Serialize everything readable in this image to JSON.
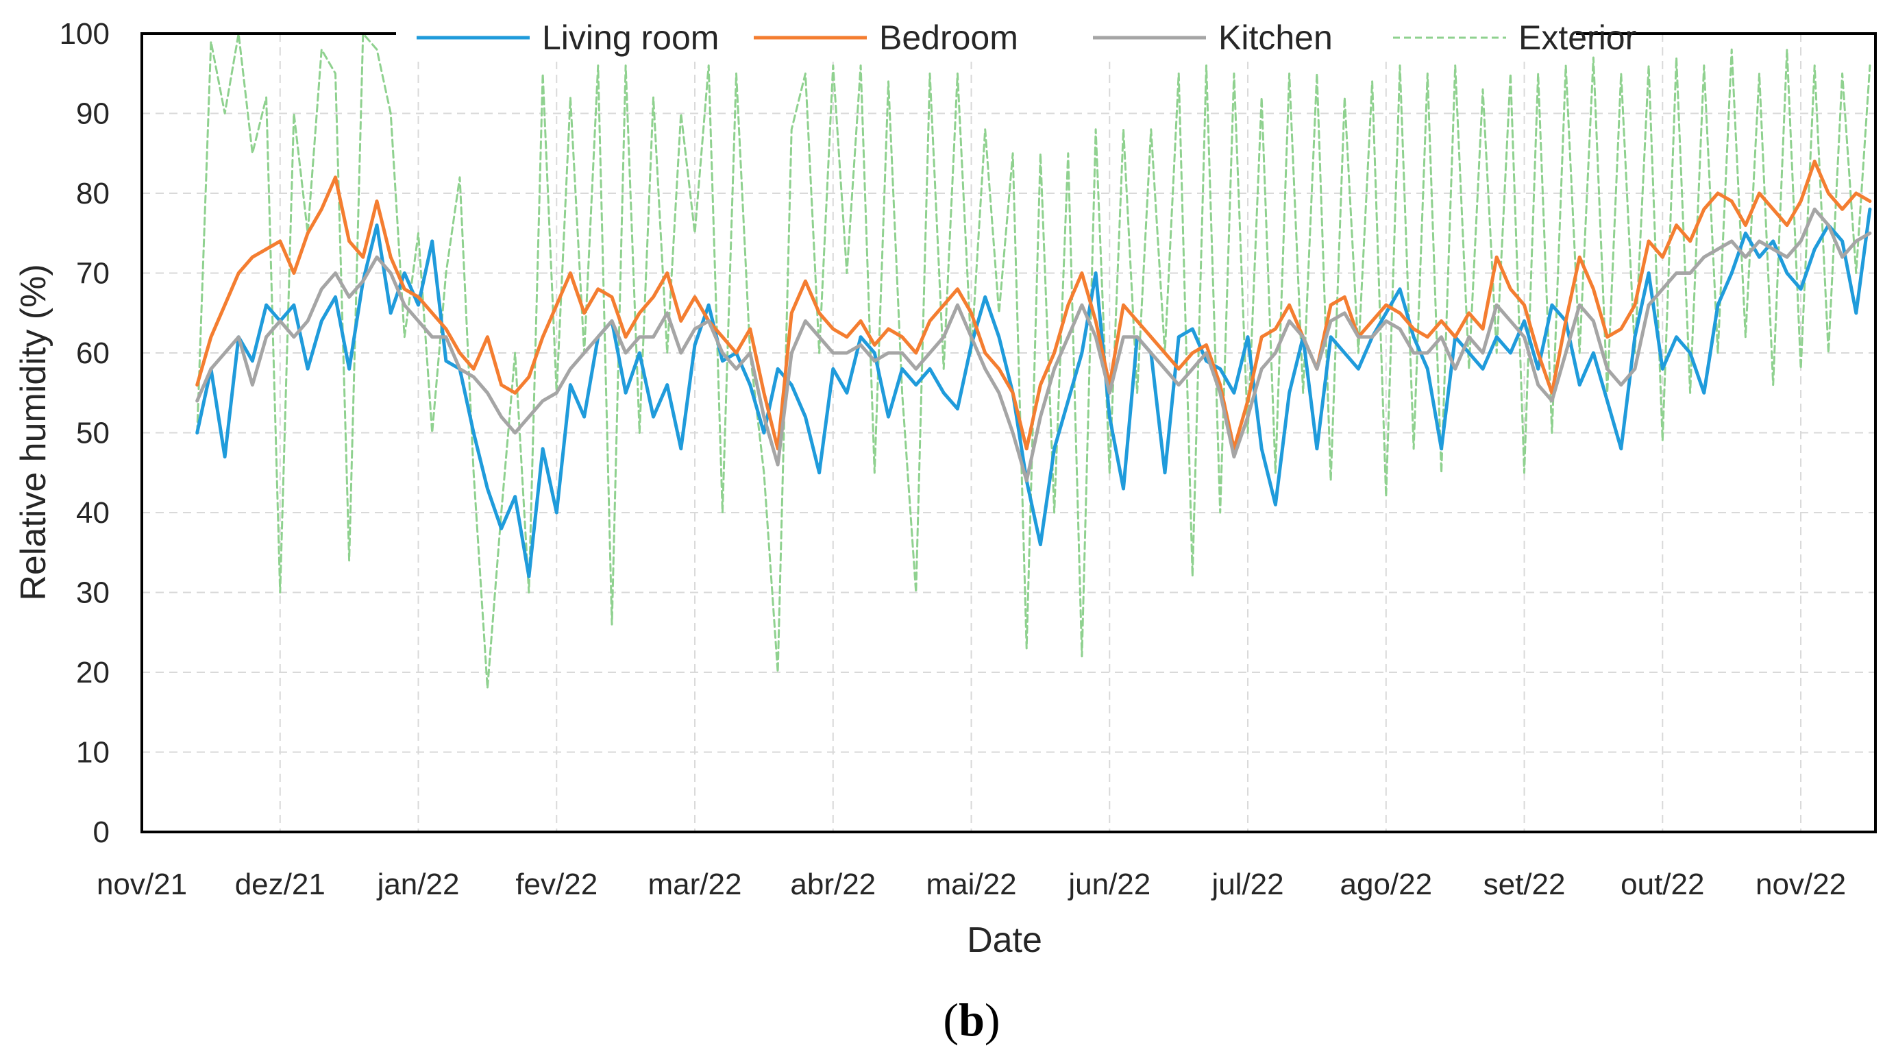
{
  "caption": {
    "open": "(",
    "label": "b",
    "close": ")"
  },
  "colors": {
    "living_room": "#1F9BDB",
    "bedroom": "#F47D30",
    "kitchen": "#A5A5A5",
    "exterior": "#8FD18F"
  },
  "chart_data": {
    "type": "line",
    "title": "",
    "xlabel": "Date",
    "ylabel": "Relative humidity (%)",
    "ylim": [
      0,
      100
    ],
    "yticks": [
      0,
      10,
      20,
      30,
      40,
      50,
      60,
      70,
      80,
      90,
      100
    ],
    "grid": true,
    "legend_position": "top",
    "x_ticks": [
      "nov/21",
      "dez/21",
      "jan/22",
      "fev/22",
      "mar/22",
      "abr/22",
      "mai/22",
      "jun/22",
      "jul/22",
      "ago/22",
      "set/22",
      "out/22",
      "nov/22"
    ],
    "x_range_months": [
      0,
      12.54
    ],
    "x_unit": "months since nov/21 (approximate)",
    "x": [
      0.4,
      0.5,
      0.6,
      0.7,
      0.8,
      0.9,
      1.0,
      1.1,
      1.2,
      1.3,
      1.4,
      1.5,
      1.6,
      1.7,
      1.8,
      1.9,
      2.0,
      2.1,
      2.2,
      2.3,
      2.4,
      2.5,
      2.6,
      2.7,
      2.8,
      2.9,
      3.0,
      3.1,
      3.2,
      3.3,
      3.4,
      3.5,
      3.6,
      3.7,
      3.8,
      3.9,
      4.0,
      4.1,
      4.2,
      4.3,
      4.4,
      4.5,
      4.6,
      4.7,
      4.8,
      4.9,
      5.0,
      5.1,
      5.2,
      5.3,
      5.4,
      5.5,
      5.6,
      5.7,
      5.8,
      5.9,
      6.0,
      6.1,
      6.2,
      6.3,
      6.4,
      6.5,
      6.6,
      6.7,
      6.8,
      6.9,
      7.0,
      7.1,
      7.2,
      7.3,
      7.4,
      7.5,
      7.6,
      7.7,
      7.8,
      7.9,
      8.0,
      8.1,
      8.2,
      8.3,
      8.4,
      8.5,
      8.6,
      8.7,
      8.8,
      8.9,
      9.0,
      9.1,
      9.2,
      9.3,
      9.4,
      9.5,
      9.6,
      9.7,
      9.8,
      9.9,
      10.0,
      10.1,
      10.2,
      10.3,
      10.4,
      10.5,
      10.6,
      10.7,
      10.8,
      10.9,
      11.0,
      11.1,
      11.2,
      11.3,
      11.4,
      11.5,
      11.6,
      11.7,
      11.8,
      11.9,
      12.0,
      12.1,
      12.2,
      12.3,
      12.4,
      12.5
    ],
    "series": [
      {
        "name": "Living room",
        "values": [
          50,
          58,
          47,
          62,
          59,
          66,
          64,
          66,
          58,
          64,
          67,
          58,
          69,
          76,
          65,
          70,
          66,
          74,
          59,
          58,
          50,
          43,
          38,
          42,
          32,
          48,
          40,
          56,
          52,
          62,
          64,
          55,
          60,
          52,
          56,
          48,
          61,
          66,
          59,
          60,
          56,
          50,
          58,
          56,
          52,
          45,
          58,
          55,
          62,
          60,
          52,
          58,
          56,
          58,
          55,
          53,
          61,
          67,
          62,
          55,
          44,
          36,
          48,
          54,
          60,
          70,
          52,
          43,
          62,
          60,
          45,
          62,
          63,
          59,
          58,
          55,
          62,
          48,
          41,
          55,
          62,
          48,
          62,
          60,
          58,
          62,
          65,
          68,
          62,
          58,
          48,
          62,
          60,
          58,
          62,
          60,
          64,
          58,
          66,
          64,
          56,
          60,
          54,
          48,
          62,
          70,
          58,
          62,
          60,
          55,
          66,
          70,
          75,
          72,
          74,
          70,
          68,
          73,
          76,
          74,
          65,
          78
        ]
      },
      {
        "name": "Bedroom",
        "values": [
          56,
          62,
          66,
          70,
          72,
          73,
          74,
          70,
          75,
          78,
          82,
          74,
          72,
          79,
          72,
          68,
          67,
          65,
          63,
          60,
          58,
          62,
          56,
          55,
          57,
          62,
          66,
          70,
          65,
          68,
          67,
          62,
          65,
          67,
          70,
          64,
          67,
          64,
          62,
          60,
          63,
          55,
          48,
          65,
          69,
          65,
          63,
          62,
          64,
          61,
          63,
          62,
          60,
          64,
          66,
          68,
          65,
          60,
          58,
          55,
          48,
          56,
          60,
          66,
          70,
          64,
          56,
          66,
          64,
          62,
          60,
          58,
          60,
          61,
          56,
          48,
          54,
          62,
          63,
          66,
          62,
          58,
          66,
          67,
          62,
          64,
          66,
          65,
          63,
          62,
          64,
          62,
          65,
          63,
          72,
          68,
          66,
          60,
          55,
          64,
          72,
          68,
          62,
          63,
          66,
          74,
          72,
          76,
          74,
          78,
          80,
          79,
          76,
          80,
          78,
          76,
          79,
          84,
          80,
          78,
          80,
          79
        ]
      },
      {
        "name": "Kitchen",
        "values": [
          54,
          58,
          60,
          62,
          56,
          62,
          64,
          62,
          64,
          68,
          70,
          67,
          69,
          72,
          70,
          66,
          64,
          62,
          62,
          58,
          57,
          55,
          52,
          50,
          52,
          54,
          55,
          58,
          60,
          62,
          64,
          60,
          62,
          62,
          65,
          60,
          63,
          64,
          60,
          58,
          60,
          52,
          46,
          60,
          64,
          62,
          60,
          60,
          61,
          59,
          60,
          60,
          58,
          60,
          62,
          66,
          62,
          58,
          55,
          50,
          44,
          52,
          58,
          62,
          66,
          62,
          55,
          62,
          62,
          60,
          58,
          56,
          58,
          60,
          55,
          47,
          52,
          58,
          60,
          64,
          62,
          58,
          64,
          65,
          62,
          62,
          64,
          63,
          60,
          60,
          62,
          58,
          62,
          60,
          66,
          64,
          62,
          56,
          54,
          60,
          66,
          64,
          58,
          56,
          58,
          66,
          68,
          70,
          70,
          72,
          73,
          74,
          72,
          74,
          73,
          72,
          74,
          78,
          76,
          72,
          74,
          75
        ]
      },
      {
        "name": "Exterior",
        "values": [
          50,
          99,
          90,
          100,
          85,
          92,
          30,
          90,
          75,
          98,
          95,
          34,
          100,
          98,
          90,
          62,
          75,
          50,
          70,
          82,
          45,
          18,
          40,
          60,
          30,
          95,
          55,
          92,
          60,
          96,
          26,
          96,
          50,
          92,
          60,
          90,
          75,
          96,
          40,
          95,
          60,
          45,
          20,
          88,
          95,
          60,
          96,
          70,
          96,
          45,
          94,
          55,
          30,
          95,
          58,
          95,
          60,
          88,
          65,
          85,
          23,
          85,
          40,
          85,
          22,
          88,
          45,
          88,
          55,
          88,
          60,
          95,
          32,
          96,
          40,
          95,
          50,
          92,
          45,
          95,
          55,
          95,
          44,
          92,
          60,
          94,
          42,
          96,
          48,
          95,
          45,
          96,
          58,
          93,
          60,
          95,
          45,
          95,
          50,
          96,
          60,
          97,
          55,
          95,
          60,
          96,
          49,
          97,
          55,
          96,
          60,
          98,
          62,
          95,
          56,
          98,
          58,
          96,
          60,
          95,
          70,
          96
        ]
      }
    ]
  }
}
